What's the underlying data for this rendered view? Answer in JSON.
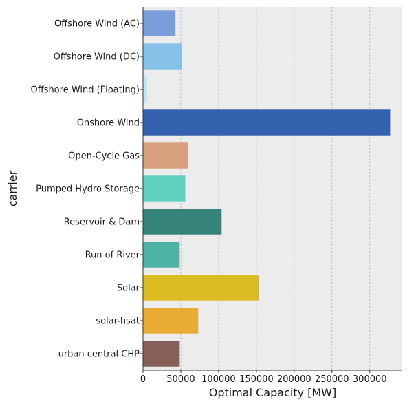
{
  "chart_data": {
    "type": "bar",
    "orientation": "horizontal",
    "title": "",
    "xlabel": "Optimal Capacity [MW]",
    "ylabel": "carrier",
    "xlim": [
      0,
      343000
    ],
    "xticks": [
      0,
      50000,
      100000,
      150000,
      200000,
      250000,
      300000
    ],
    "xtick_labels": [
      "0",
      "50000",
      "100000",
      "150000",
      "200000",
      "250000",
      "300000"
    ],
    "grid": true,
    "background_color": "#ececec",
    "categories": [
      "Offshore Wind (AC)",
      "Offshore Wind (DC)",
      "Offshore Wind (Floating)",
      "Onshore Wind",
      "Open-Cycle Gas",
      "Pumped Hydro Storage",
      "Reservoir & Dam",
      "Run of River",
      "Solar",
      "solar-hsat",
      "urban central CHP"
    ],
    "values": [
      43000,
      51000,
      5500,
      327000,
      60000,
      56000,
      104000,
      48500,
      153000,
      73000,
      48500
    ],
    "colors": [
      "#7a9fdc",
      "#86c2e8",
      "#c2e4f6",
      "#3462ae",
      "#d89f7c",
      "#63d1c2",
      "#36837a",
      "#4fb2a6",
      "#dcbc23",
      "#e8ab34",
      "#855f58"
    ]
  }
}
